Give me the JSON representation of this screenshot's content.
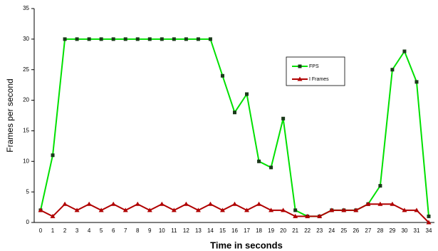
{
  "chart_data": {
    "type": "line",
    "x_label": "Time in seconds",
    "y_label": "Frames per second",
    "categories": [
      "0",
      "1",
      "2",
      "3",
      "4",
      "5",
      "6",
      "7",
      "8",
      "9",
      "10",
      "11",
      "12",
      "13",
      "14",
      "15",
      "16",
      "17",
      "18",
      "19",
      "20",
      "21",
      "22",
      "23",
      "24",
      "25",
      "26",
      "27",
      "28",
      "29",
      "30",
      "31",
      "34"
    ],
    "series": [
      {
        "name": "FPS",
        "color": "#00e000",
        "marker_color": "#1a3a1a",
        "marker": "square",
        "values": [
          2,
          11,
          30,
          30,
          30,
          30,
          30,
          30,
          30,
          30,
          30,
          30,
          30,
          30,
          30,
          24,
          18,
          21,
          10,
          9,
          17,
          2,
          1,
          1,
          2,
          2,
          2,
          3,
          6,
          25,
          28,
          23,
          1
        ]
      },
      {
        "name": "I Frames",
        "color": "#b00000",
        "marker_color": "#b00000",
        "marker": "triangle",
        "values": [
          2,
          1,
          3,
          2,
          3,
          2,
          3,
          2,
          3,
          2,
          3,
          2,
          3,
          2,
          3,
          2,
          3,
          2,
          3,
          2,
          2,
          1,
          1,
          1,
          2,
          2,
          2,
          3,
          3,
          3,
          2,
          2,
          0
        ]
      }
    ],
    "ylim": [
      0,
      35
    ],
    "yticks": [
      0,
      5,
      10,
      15,
      20,
      25,
      30,
      35
    ],
    "grid": false
  }
}
